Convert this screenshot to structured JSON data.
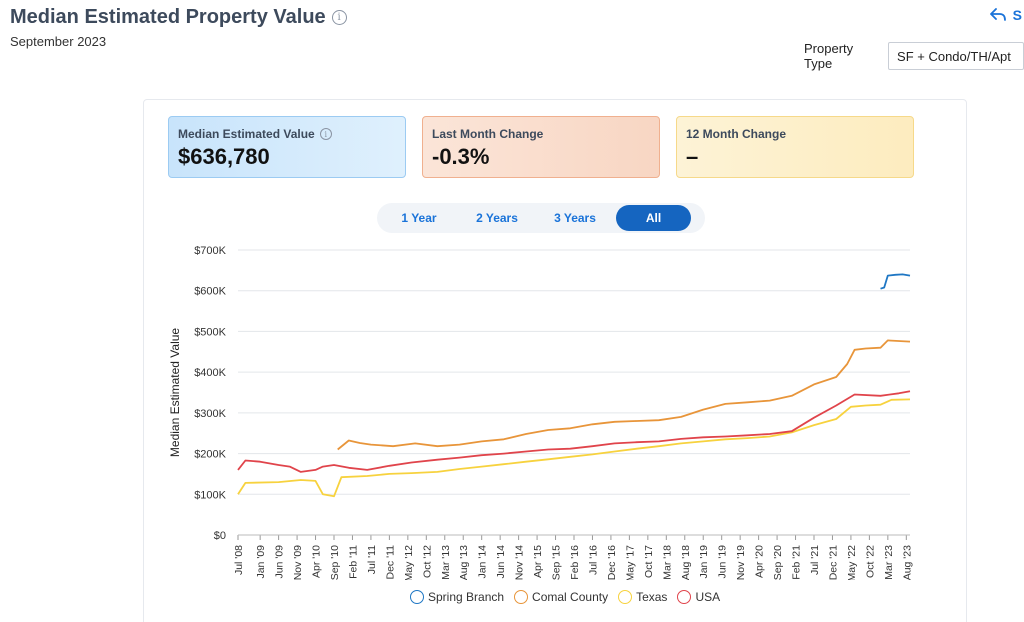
{
  "header": {
    "title": "Median Estimated Property Value",
    "date": "September 2023",
    "share_label": "S"
  },
  "filter": {
    "label": "Property Type",
    "value": "SF + Condo/TH/Apt"
  },
  "cards": [
    {
      "label": "Median Estimated Value",
      "value": "$636,780"
    },
    {
      "label": "Last Month Change",
      "value": "-0.3%"
    },
    {
      "label": "12 Month Change",
      "value": "–"
    }
  ],
  "range_tabs": [
    "1 Year",
    "2 Years",
    "3 Years",
    "All"
  ],
  "range_selected": "All",
  "colors": {
    "Spring Branch": "#1f77c4",
    "Comal County": "#e8953a",
    "Texas": "#f7d23e",
    "USA": "#e0444b"
  },
  "chart_data": {
    "type": "line",
    "ylabel": "Median Estimated Value",
    "ylim": [
      0,
      700000
    ],
    "yticks": [
      {
        "value": 0,
        "label": "$0"
      },
      {
        "value": 100000,
        "label": "$100K"
      },
      {
        "value": 200000,
        "label": "$200K"
      },
      {
        "value": 300000,
        "label": "$300K"
      },
      {
        "value": 400000,
        "label": "$400K"
      },
      {
        "value": 500000,
        "label": "$500K"
      },
      {
        "value": 600000,
        "label": "$600K"
      },
      {
        "value": 700000,
        "label": "$700K"
      }
    ],
    "xrange": [
      "2008-07",
      "2023-09"
    ],
    "xticks": [
      {
        "date": "2008-07",
        "label": "Jul '08"
      },
      {
        "date": "2009-01",
        "label": "Jan '09"
      },
      {
        "date": "2009-06",
        "label": "Jun '09"
      },
      {
        "date": "2009-11",
        "label": "Nov '09"
      },
      {
        "date": "2010-04",
        "label": "Apr '10"
      },
      {
        "date": "2010-09",
        "label": "Sep '10"
      },
      {
        "date": "2011-02",
        "label": "Feb '11"
      },
      {
        "date": "2011-07",
        "label": "Jul '11"
      },
      {
        "date": "2011-12",
        "label": "Dec '11"
      },
      {
        "date": "2012-05",
        "label": "May '12"
      },
      {
        "date": "2012-10",
        "label": "Oct '12"
      },
      {
        "date": "2013-03",
        "label": "Mar '13"
      },
      {
        "date": "2013-08",
        "label": "Aug '13"
      },
      {
        "date": "2014-01",
        "label": "Jan '14"
      },
      {
        "date": "2014-06",
        "label": "Jun '14"
      },
      {
        "date": "2014-11",
        "label": "Nov '14"
      },
      {
        "date": "2015-04",
        "label": "Apr '15"
      },
      {
        "date": "2015-09",
        "label": "Sep '15"
      },
      {
        "date": "2016-02",
        "label": "Feb '16"
      },
      {
        "date": "2016-07",
        "label": "Jul '16"
      },
      {
        "date": "2016-12",
        "label": "Dec '16"
      },
      {
        "date": "2017-05",
        "label": "May '17"
      },
      {
        "date": "2017-10",
        "label": "Oct '17"
      },
      {
        "date": "2018-03",
        "label": "Mar '18"
      },
      {
        "date": "2018-08",
        "label": "Aug '18"
      },
      {
        "date": "2019-01",
        "label": "Jan '19"
      },
      {
        "date": "2019-06",
        "label": "Jun '19"
      },
      {
        "date": "2019-11",
        "label": "Nov '19"
      },
      {
        "date": "2020-04",
        "label": "Apr '20"
      },
      {
        "date": "2020-09",
        "label": "Sep '20"
      },
      {
        "date": "2021-02",
        "label": "Feb '21"
      },
      {
        "date": "2021-07",
        "label": "Jul '21"
      },
      {
        "date": "2021-12",
        "label": "Dec '21"
      },
      {
        "date": "2022-05",
        "label": "May '22"
      },
      {
        "date": "2022-10",
        "label": "Oct '22"
      },
      {
        "date": "2023-03",
        "label": "Mar '23"
      },
      {
        "date": "2023-08",
        "label": "Aug '23"
      }
    ],
    "grid": true,
    "legend_position": "bottom",
    "series": [
      {
        "name": "Spring Branch",
        "points": [
          [
            "2023-01",
            605000
          ],
          [
            "2023-02",
            608000
          ],
          [
            "2023-03",
            637000
          ],
          [
            "2023-05",
            639000
          ],
          [
            "2023-07",
            640000
          ],
          [
            "2023-09",
            637000
          ]
        ]
      },
      {
        "name": "Comal County",
        "points": [
          [
            "2010-10",
            210000
          ],
          [
            "2011-01",
            232000
          ],
          [
            "2011-04",
            226000
          ],
          [
            "2011-07",
            222000
          ],
          [
            "2012-01",
            218000
          ],
          [
            "2012-07",
            225000
          ],
          [
            "2013-01",
            218000
          ],
          [
            "2013-07",
            222000
          ],
          [
            "2014-01",
            230000
          ],
          [
            "2014-07",
            235000
          ],
          [
            "2015-01",
            248000
          ],
          [
            "2015-07",
            258000
          ],
          [
            "2016-01",
            262000
          ],
          [
            "2016-07",
            272000
          ],
          [
            "2017-01",
            278000
          ],
          [
            "2017-07",
            280000
          ],
          [
            "2018-01",
            282000
          ],
          [
            "2018-07",
            290000
          ],
          [
            "2019-01",
            308000
          ],
          [
            "2019-07",
            322000
          ],
          [
            "2020-01",
            326000
          ],
          [
            "2020-07",
            330000
          ],
          [
            "2021-01",
            342000
          ],
          [
            "2021-07",
            370000
          ],
          [
            "2022-01",
            388000
          ],
          [
            "2022-04",
            420000
          ],
          [
            "2022-06",
            455000
          ],
          [
            "2022-09",
            458000
          ],
          [
            "2023-01",
            460000
          ],
          [
            "2023-03",
            478000
          ],
          [
            "2023-09",
            475000
          ]
        ]
      },
      {
        "name": "Texas",
        "points": [
          [
            "2008-07",
            100000
          ],
          [
            "2008-09",
            128000
          ],
          [
            "2009-06",
            130000
          ],
          [
            "2009-12",
            135000
          ],
          [
            "2010-04",
            133000
          ],
          [
            "2010-06",
            100000
          ],
          [
            "2010-09",
            95000
          ],
          [
            "2010-11",
            142000
          ],
          [
            "2011-06",
            145000
          ],
          [
            "2011-12",
            150000
          ],
          [
            "2012-06",
            152000
          ],
          [
            "2013-01",
            155000
          ],
          [
            "2013-07",
            162000
          ],
          [
            "2014-01",
            168000
          ],
          [
            "2014-07",
            174000
          ],
          [
            "2015-01",
            180000
          ],
          [
            "2015-07",
            186000
          ],
          [
            "2016-01",
            192000
          ],
          [
            "2016-07",
            198000
          ],
          [
            "2017-01",
            205000
          ],
          [
            "2017-07",
            212000
          ],
          [
            "2018-01",
            218000
          ],
          [
            "2018-07",
            225000
          ],
          [
            "2019-01",
            230000
          ],
          [
            "2019-07",
            235000
          ],
          [
            "2020-01",
            238000
          ],
          [
            "2020-07",
            242000
          ],
          [
            "2021-01",
            252000
          ],
          [
            "2021-07",
            270000
          ],
          [
            "2022-01",
            285000
          ],
          [
            "2022-05",
            315000
          ],
          [
            "2022-09",
            318000
          ],
          [
            "2023-01",
            320000
          ],
          [
            "2023-04",
            332000
          ],
          [
            "2023-09",
            333000
          ]
        ]
      },
      {
        "name": "USA",
        "points": [
          [
            "2008-07",
            160000
          ],
          [
            "2008-09",
            183000
          ],
          [
            "2009-01",
            180000
          ],
          [
            "2009-06",
            172000
          ],
          [
            "2009-09",
            168000
          ],
          [
            "2009-12",
            155000
          ],
          [
            "2010-04",
            160000
          ],
          [
            "2010-06",
            168000
          ],
          [
            "2010-09",
            172000
          ],
          [
            "2011-01",
            165000
          ],
          [
            "2011-06",
            160000
          ],
          [
            "2011-12",
            170000
          ],
          [
            "2012-06",
            178000
          ],
          [
            "2013-01",
            185000
          ],
          [
            "2013-07",
            190000
          ],
          [
            "2014-01",
            196000
          ],
          [
            "2014-07",
            200000
          ],
          [
            "2015-01",
            205000
          ],
          [
            "2015-07",
            210000
          ],
          [
            "2016-01",
            212000
          ],
          [
            "2016-07",
            218000
          ],
          [
            "2017-01",
            225000
          ],
          [
            "2017-07",
            228000
          ],
          [
            "2018-01",
            230000
          ],
          [
            "2018-07",
            236000
          ],
          [
            "2019-01",
            240000
          ],
          [
            "2019-07",
            242000
          ],
          [
            "2020-01",
            245000
          ],
          [
            "2020-07",
            248000
          ],
          [
            "2021-01",
            255000
          ],
          [
            "2021-07",
            288000
          ],
          [
            "2022-01",
            318000
          ],
          [
            "2022-06",
            345000
          ],
          [
            "2023-01",
            342000
          ],
          [
            "2023-06",
            348000
          ],
          [
            "2023-09",
            353000
          ]
        ]
      }
    ]
  }
}
